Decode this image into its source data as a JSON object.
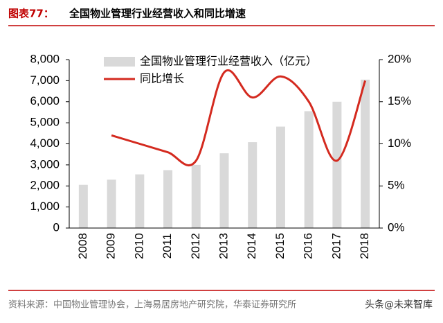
{
  "chart_data": {
    "type": "bar",
    "title_label": "图表77：",
    "title": "全国物业管理行业经营收入和同比增速",
    "categories": [
      "2008",
      "2009",
      "2010",
      "2011",
      "2012",
      "2013",
      "2014",
      "2015",
      "2016",
      "2017",
      "2018"
    ],
    "series": [
      {
        "name": "全国物业管理行业经营收入（亿元）",
        "type": "bar",
        "color": "#d9d9d9",
        "values": [
          2050,
          2300,
          2550,
          2750,
          3000,
          3550,
          4080,
          4820,
          5550,
          6000,
          7050
        ]
      },
      {
        "name": "同比增长",
        "type": "line",
        "axis": "y2",
        "color": "#d42a1f",
        "values": [
          null,
          11,
          10,
          9,
          8,
          18.5,
          15.5,
          18,
          15,
          8,
          17.5
        ]
      }
    ],
    "ylim": [
      0,
      8000
    ],
    "yticks": [
      0,
      {
        "value": 1000,
        "label": "1,000"
      },
      {
        "value": 2000,
        "label": "2,000"
      },
      {
        "value": 3000,
        "label": "3,000"
      },
      {
        "value": 4000,
        "label": "4,000"
      },
      {
        "value": 5000,
        "label": "5,000"
      },
      {
        "value": 6000,
        "label": "6,000"
      },
      {
        "value": 7000,
        "label": "7,000"
      },
      {
        "value": 8000,
        "label": "8,000"
      }
    ],
    "y2lim": [
      0,
      20
    ],
    "y2ticks": [
      {
        "value": 0,
        "label": "0%"
      },
      {
        "value": 5,
        "label": "5%"
      },
      {
        "value": 10,
        "label": "10%"
      },
      {
        "value": 15,
        "label": "15%"
      },
      {
        "value": 20,
        "label": "20%"
      }
    ],
    "source": "资料来源：中国物业管理协会，上海易居房地产研究院，华泰证券研究所",
    "watermark": "头条@未来智库"
  }
}
